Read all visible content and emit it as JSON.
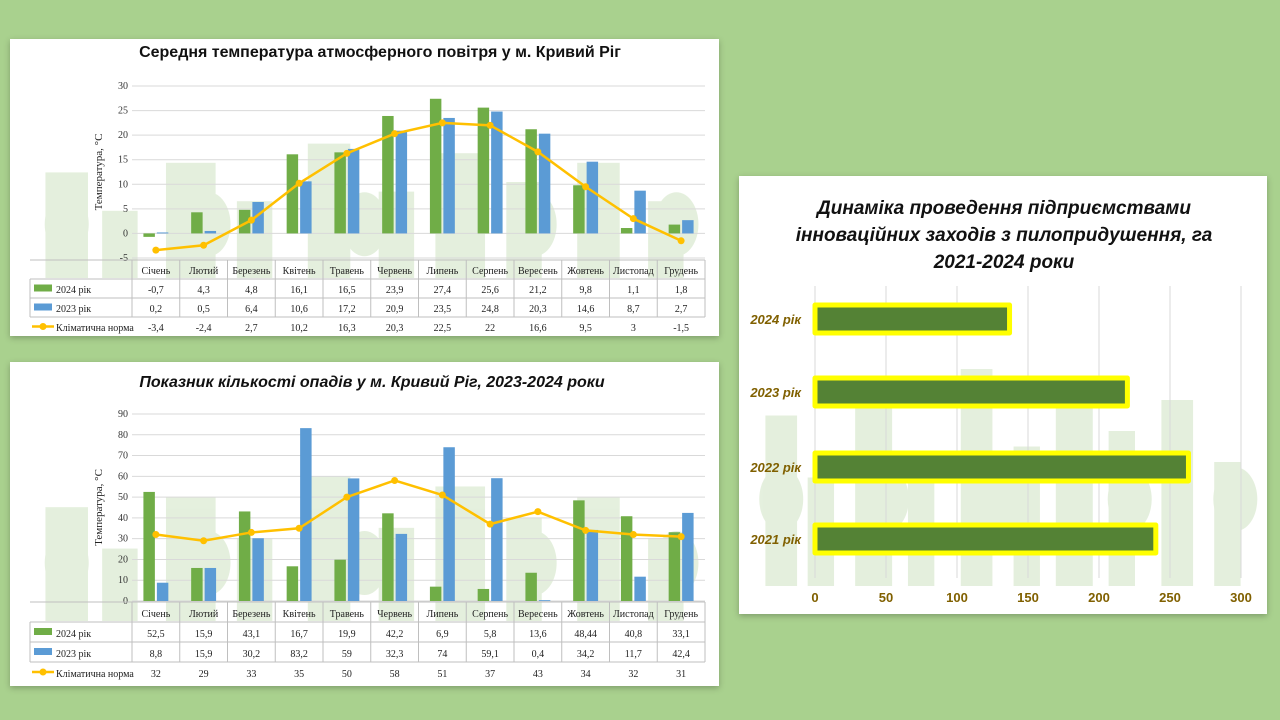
{
  "colors": {
    "background": "#a9d18e",
    "series_2024": "#70ad47",
    "series_2023": "#5b9bd5",
    "norm": "#ffc000",
    "bar_fill": "#548235",
    "bar_glow": "#ffff00",
    "bar_text": "#806000"
  },
  "chart_data": [
    {
      "type": "bar",
      "title": "Середня температура атмосферного повітря  у м. Кривий Ріг",
      "ylabel": "Температура, °С",
      "ylim": [
        -5,
        30
      ],
      "yticks": [
        -5,
        0,
        5,
        10,
        15,
        20,
        25,
        30
      ],
      "categories": [
        "Січень",
        "Лютий",
        "Березень",
        "Квітень",
        "Травень",
        "Червень",
        "Липень",
        "Серпень",
        "Вересень",
        "Жовтень",
        "Листопад",
        "Грудень"
      ],
      "series": [
        {
          "name": "2024 рік",
          "kind": "bar",
          "values": [
            -0.7,
            4.3,
            4.8,
            16.1,
            16.5,
            23.9,
            27.4,
            25.6,
            21.2,
            9.8,
            1.1,
            1.8
          ],
          "labels": [
            "-0,7",
            "4,3",
            "4,8",
            "16,1",
            "16,5",
            "23,9",
            "27,4",
            "25,6",
            "21,2",
            "9,8",
            "1,1",
            "1,8"
          ]
        },
        {
          "name": "2023 рік",
          "kind": "bar",
          "values": [
            0.2,
            0.5,
            6.4,
            10.6,
            17.2,
            20.9,
            23.5,
            24.8,
            20.3,
            14.6,
            8.7,
            2.7
          ],
          "labels": [
            "0,2",
            "0,5",
            "6,4",
            "10,6",
            "17,2",
            "20,9",
            "23,5",
            "24,8",
            "20,3",
            "14,6",
            "8,7",
            "2,7"
          ]
        },
        {
          "name": "Кліматична норма",
          "kind": "line",
          "values": [
            -3.4,
            -2.4,
            2.7,
            10.2,
            16.3,
            20.3,
            22.5,
            22,
            16.6,
            9.5,
            3,
            -1.5
          ],
          "labels": [
            "-3,4",
            "-2,4",
            "2,7",
            "10,2",
            "16,3",
            "20,3",
            "22,5",
            "22",
            "16,6",
            "9,5",
            "3",
            "-1,5"
          ]
        }
      ]
    },
    {
      "type": "bar",
      "title": "Показник кількості опадів у м. Кривий Ріг, 2023-2024 роки",
      "ylabel": "Температура, °С",
      "ylim": [
        0,
        90
      ],
      "yticks": [
        0,
        10,
        20,
        30,
        40,
        50,
        60,
        70,
        80,
        90
      ],
      "categories": [
        "Січень",
        "Лютий",
        "Березень",
        "Квітень",
        "Травень",
        "Червень",
        "Липень",
        "Серпень",
        "Вересень",
        "Жовтень",
        "Листопад",
        "Грудень"
      ],
      "series": [
        {
          "name": "2024 рік",
          "kind": "bar",
          "values": [
            52.5,
            15.9,
            43.1,
            16.7,
            19.9,
            42.2,
            6.9,
            5.8,
            13.6,
            48.44,
            40.8,
            33.1
          ],
          "labels": [
            "52,5",
            "15,9",
            "43,1",
            "16,7",
            "19,9",
            "42,2",
            "6,9",
            "5,8",
            "13,6",
            "48,44",
            "40,8",
            "33,1"
          ]
        },
        {
          "name": "2023 рік",
          "kind": "bar",
          "values": [
            8.8,
            15.9,
            30.2,
            83.2,
            59,
            32.3,
            74,
            59.1,
            0.4,
            34.2,
            11.7,
            42.4
          ],
          "labels": [
            "8,8",
            "15,9",
            "30,2",
            "83,2",
            "59",
            "32,3",
            "74",
            "59,1",
            "0,4",
            "34,2",
            "11,7",
            "42,4"
          ]
        },
        {
          "name": "Кліматична норма",
          "kind": "line",
          "values": [
            32,
            29,
            33,
            35,
            50,
            58,
            51,
            37,
            43,
            34,
            32,
            31
          ],
          "labels": [
            "32",
            "29",
            "33",
            "35",
            "50",
            "58",
            "51",
            "37",
            "43",
            "34",
            "32",
            "31"
          ]
        }
      ]
    },
    {
      "type": "bar",
      "orientation": "horizontal",
      "title": "Динаміка проведення підприємствами інноваційних заходів з пилопридушення, га 2021-2024 роки",
      "title_lines": [
        "Динаміка проведення підприємствами",
        "інноваційних заходів з пилопридушення, га",
        "2021-2024 роки"
      ],
      "categories": [
        "2024 рік",
        "2023 рік",
        "2022 рік",
        "2021 рік"
      ],
      "values": [
        137,
        220,
        263,
        240
      ],
      "xlim": [
        0,
        300
      ],
      "xticks": [
        0,
        50,
        100,
        150,
        200,
        250,
        300
      ]
    }
  ]
}
